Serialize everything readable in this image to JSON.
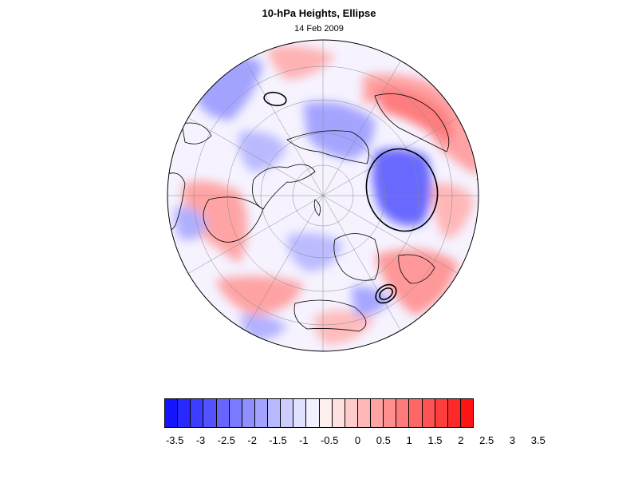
{
  "title": "10-hPa Heights, Ellipse",
  "subtitle": "14 Feb 2009",
  "map": {
    "projection": "north-polar-stereographic",
    "features": [
      "continent-outlines",
      "lat-lon-gridlines",
      "shaded-height-anomalies",
      "ellipse-contours"
    ]
  },
  "colorbar": {
    "labels": [
      "-3.5",
      "-3",
      "-2.5",
      "-2",
      "-1.5",
      "-1",
      "-0.5",
      "0",
      "0.5",
      "1",
      "1.5",
      "2",
      "2.5",
      "3",
      "3.5"
    ],
    "colors": [
      "#1414ff",
      "#2929ff",
      "#3d3dff",
      "#5252ff",
      "#6666ff",
      "#7a7aff",
      "#8f8fff",
      "#a3a3ff",
      "#b8b8ff",
      "#ccccff",
      "#e0e0ff",
      "#f0f0ff",
      "#fff0f0",
      "#ffe0e0",
      "#ffcccc",
      "#ffb8b8",
      "#ffa3a3",
      "#ff8f8f",
      "#ff7a7a",
      "#ff6666",
      "#ff5252",
      "#ff3d3d",
      "#ff2929",
      "#ff1414"
    ]
  }
}
